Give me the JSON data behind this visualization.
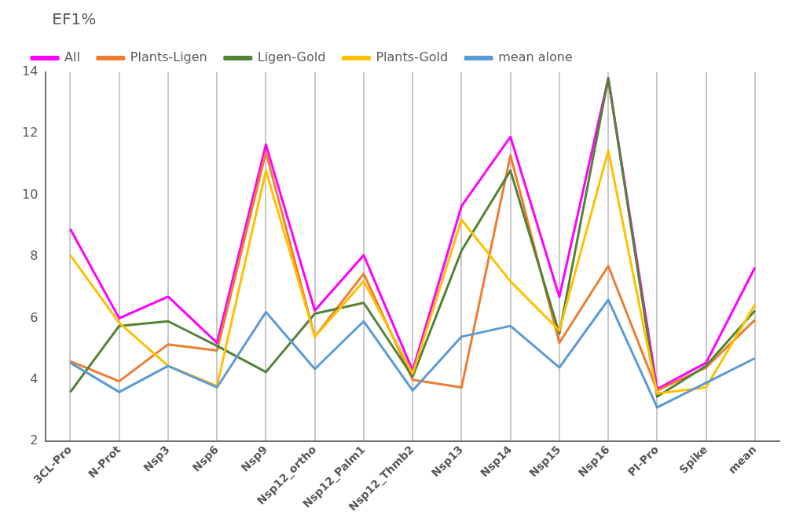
{
  "chart_data": {
    "type": "line",
    "ylabel": "EF1%",
    "categories": [
      "3CL-Pro",
      "N-Prot",
      "Nsp3",
      "Nsp6",
      "Nsp9",
      "Nsp12_ortho",
      "Nsp12_Palm1",
      "Nsp12_Thmb2",
      "Nsp13",
      "Nsp14",
      "Nsp15",
      "Nsp16",
      "PI-Pro",
      "Spike",
      "mean"
    ],
    "series": [
      {
        "name": "All",
        "color": "#ff00ff",
        "values": [
          8.9,
          6.0,
          6.7,
          5.2,
          11.65,
          6.25,
          8.05,
          4.3,
          9.65,
          11.9,
          6.7,
          13.8,
          3.7,
          4.55,
          7.65
        ]
      },
      {
        "name": "Plants-Ligen",
        "color": "#ed7d31",
        "values": [
          4.6,
          3.95,
          5.15,
          4.95,
          11.4,
          5.4,
          7.45,
          4.0,
          3.75,
          11.3,
          5.2,
          7.7,
          3.65,
          4.4,
          5.95
        ]
      },
      {
        "name": "Ligen-Gold",
        "color": "#548235",
        "values": [
          3.6,
          5.75,
          5.9,
          5.1,
          4.25,
          6.15,
          6.5,
          4.1,
          8.2,
          10.8,
          5.5,
          13.8,
          3.45,
          4.45,
          6.25
        ]
      },
      {
        "name": "Plants-Gold",
        "color": "#ffc000",
        "values": [
          8.05,
          5.85,
          4.45,
          3.8,
          10.8,
          5.4,
          7.2,
          4.2,
          9.2,
          7.2,
          5.6,
          11.45,
          3.55,
          3.75,
          6.45
        ]
      },
      {
        "name": "mean alone",
        "color": "#5b9bd5",
        "values": [
          4.55,
          3.6,
          4.45,
          3.75,
          6.2,
          4.35,
          5.9,
          3.65,
          5.4,
          5.75,
          4.4,
          6.6,
          3.1,
          3.9,
          4.7
        ]
      }
    ],
    "ylim": [
      2,
      14
    ],
    "yticks": [
      2,
      4,
      6,
      8,
      10,
      12,
      14
    ],
    "grid": "x",
    "legend": "top left",
    "marker": "none",
    "line_style": "solid"
  }
}
